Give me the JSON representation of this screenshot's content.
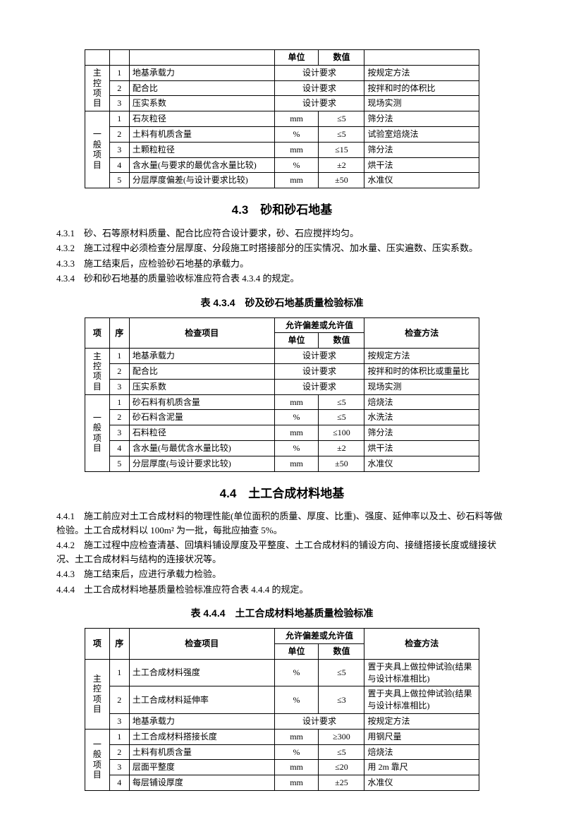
{
  "table1": {
    "hdr_unit": "单位",
    "hdr_value": "数值",
    "group1": "主控项目",
    "group2": "一般项目",
    "rows": [
      {
        "n": "1",
        "item": "地基承载力",
        "unit": "",
        "val": "设计要求",
        "method": "按规定方法",
        "span": true
      },
      {
        "n": "2",
        "item": "配合比",
        "unit": "",
        "val": "设计要求",
        "method": "按拌和时的体积比",
        "span": true
      },
      {
        "n": "3",
        "item": "压实系数",
        "unit": "",
        "val": "设计要求",
        "method": "现场实测",
        "span": true
      },
      {
        "n": "1",
        "item": "石灰粒径",
        "unit": "mm",
        "val": "≤5",
        "method": "筛分法"
      },
      {
        "n": "2",
        "item": "土料有机质含量",
        "unit": "%",
        "val": "≤5",
        "method": "试验室焙烧法"
      },
      {
        "n": "3",
        "item": "土颗粒粒径",
        "unit": "mm",
        "val": "≤15",
        "method": "筛分法"
      },
      {
        "n": "4",
        "item": "含水量(与要求的最优含水量比较)",
        "unit": "%",
        "val": "±2",
        "method": "烘干法"
      },
      {
        "n": "5",
        "item": "分层厚度偏差(与设计要求比较)",
        "unit": "mm",
        "val": "±50",
        "method": "水准仪"
      }
    ]
  },
  "sec43_title": "4.3　砂和砂石地基",
  "sec43_p1": "4.3.1　砂、石等原材料质量、配合比应符合设计要求，砂、石应搅拌均匀。",
  "sec43_p2": "4.3.2　施工过程中必须检查分层厚度、分段施工时搭接部分的压实情况、加水量、压实遍数、压实系数。",
  "sec43_p3": "4.3.3　施工结束后，应检验砂石地基的承载力。",
  "sec43_p4": "4.3.4　砂和砂石地基的质量验收标准应符合表 4.3.4 的规定。",
  "cap434": "表 4.3.4　砂及砂石地基质量检验标准",
  "table434": {
    "hdr_xiang": "项",
    "hdr_xu": "序",
    "hdr_item": "检查项目",
    "hdr_allow": "允许偏差或允许值",
    "hdr_unit": "单位",
    "hdr_value": "数值",
    "hdr_method": "检查方法",
    "group1": "主控项目",
    "group2": "一般项目",
    "rows": [
      {
        "n": "1",
        "item": "地基承载力",
        "unit": "",
        "val": "设计要求",
        "method": "按规定方法",
        "span": true
      },
      {
        "n": "2",
        "item": "配合比",
        "unit": "",
        "val": "设计要求",
        "method": "按拌和时的体积比或重量比",
        "span": true
      },
      {
        "n": "3",
        "item": "压实系数",
        "unit": "",
        "val": "设计要求",
        "method": "现场实测",
        "span": true
      },
      {
        "n": "1",
        "item": "砂石料有机质含量",
        "unit": "mm",
        "val": "≤5",
        "method": "焙烧法"
      },
      {
        "n": "2",
        "item": "砂石料含泥量",
        "unit": "%",
        "val": "≤5",
        "method": "水洗法"
      },
      {
        "n": "3",
        "item": "石料粒径",
        "unit": "mm",
        "val": "≤100",
        "method": "筛分法"
      },
      {
        "n": "4",
        "item": "含水量(与最优含水量比较)",
        "unit": "%",
        "val": "±2",
        "method": "烘干法"
      },
      {
        "n": "5",
        "item": "分层厚度(与设计要求比较)",
        "unit": "mm",
        "val": "±50",
        "method": "水准仪"
      }
    ]
  },
  "sec44_title": "4.4　土工合成材料地基",
  "sec44_p1": "4.4.1　施工前应对土工合成材料的物理性能(单位面积的质量、厚度、比重)、强度、延伸率以及土、砂石料等做检验。土工合成材料以 100m² 为一批，每批应抽查 5%。",
  "sec44_p2": "4.4.2　施工过程中应检查清基、回填料铺设厚度及平整度、土工合成材料的铺设方向、接缝搭接长度或缝接状况、土工合成材料与结构的连接状况等。",
  "sec44_p3": "4.4.3　施工结束后，应进行承载力检验。",
  "sec44_p4": "4.4.4　土工合成材料地基质量检验标准应符合表 4.4.4 的规定。",
  "cap444": "表 4.4.4　土工合成材料地基质量检验标准",
  "table444": {
    "hdr_xiang": "项",
    "hdr_xu": "序",
    "hdr_item": "检查项目",
    "hdr_allow": "允许偏差或允许值",
    "hdr_unit": "单位",
    "hdr_value": "数值",
    "hdr_method": "检查方法",
    "group1": "主控项目",
    "group2": "一般项目",
    "rows": [
      {
        "n": "1",
        "item": "土工合成材料强度",
        "unit": "%",
        "val": "≤5",
        "method": "置于夹具上做拉伸试验(结果与设计标准相比)"
      },
      {
        "n": "2",
        "item": "土工合成材料延伸率",
        "unit": "%",
        "val": "≤3",
        "method": "置于夹具上做拉伸试验(结果与设计标准相比)"
      },
      {
        "n": "3",
        "item": "地基承载力",
        "unit": "",
        "val": "设计要求",
        "method": "按规定方法",
        "span": true
      },
      {
        "n": "1",
        "item": "土工合成材料搭接长度",
        "unit": "mm",
        "val": "≥300",
        "method": "用钢尺量"
      },
      {
        "n": "2",
        "item": "土料有机质含量",
        "unit": "%",
        "val": "≤5",
        "method": "焙烧法"
      },
      {
        "n": "3",
        "item": "层面平整度",
        "unit": "mm",
        "val": "≤20",
        "method": "用 2m 靠尺"
      },
      {
        "n": "4",
        "item": "每层铺设厚度",
        "unit": "mm",
        "val": "±25",
        "method": "水准仪"
      }
    ]
  }
}
